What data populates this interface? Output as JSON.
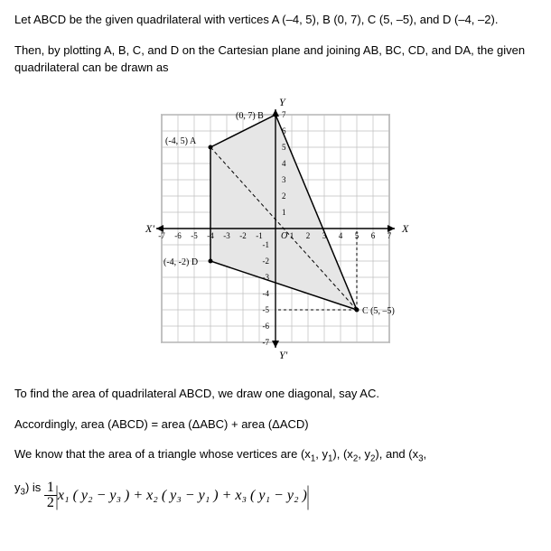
{
  "para1": "Let ABCD be the given quadrilateral with vertices A (–4, 5), B (0, 7), C (5, –5), and D (–4, –2).",
  "para2": "Then, by plotting A, B, C, and D on the Cartesian plane and joining AB, BC, CD, and DA, the given quadrilateral can be drawn as",
  "para3": "To find the area of quadrilateral ABCD, we draw one diagonal, say AC.",
  "para4": "Accordingly, area (ABCD) = area (ΔABC) + area (ΔACD)",
  "para5a": "We know that the area of a triangle whose vertices are (x",
  "para5b": ", y",
  "para5c": "), (x",
  "para5d": ", y",
  "para5e": "), and (x",
  "para5f": ",",
  "para6a": "y",
  "para6b": ") is ",
  "sub1": "1",
  "sub2": "2",
  "sub3": "3",
  "frac_num": "1",
  "frac_den": "2",
  "formula_inner": "x₁ ( y₂ − y₃ ) + x₂ ( y₃ − y₁ ) + x₃ ( y₁ − y₂ )",
  "chart": {
    "type": "cartesian-plot",
    "xlim": [
      -7,
      7
    ],
    "ylim": [
      -7,
      7
    ],
    "cell": 18,
    "origin_label": "O",
    "axis_labels": {
      "xpos": "X",
      "xneg": "X'",
      "ypos": "Y",
      "yneg": "Y'"
    },
    "grid_color": "#bfbfbf",
    "axis_color": "#000000",
    "line_color": "#000000",
    "fill_color": "#e6e6e6",
    "xticks": [
      -7,
      -6,
      -5,
      -4,
      -3,
      -2,
      -1,
      1,
      2,
      3,
      4,
      5,
      6,
      7
    ],
    "yticks": [
      -7,
      -6,
      -5,
      -4,
      -3,
      -2,
      -1,
      1,
      2,
      3,
      4,
      5,
      6,
      7
    ],
    "points": {
      "A": {
        "x": -4,
        "y": 5,
        "label": "(-4, 5) A",
        "label_dx": -50,
        "label_dy": -4
      },
      "B": {
        "x": 0,
        "y": 7,
        "label": "(0, 7) B",
        "label_dx": -44,
        "label_dy": 4
      },
      "C": {
        "x": 5,
        "y": -5,
        "label": "C (5, –5)",
        "label_dx": 6,
        "label_dy": 4
      },
      "D": {
        "x": -4,
        "y": -2,
        "label": "(-4, -2) D",
        "label_dx": -52,
        "label_dy": 4
      }
    },
    "polygon": [
      "A",
      "B",
      "C",
      "D"
    ],
    "diagonal": [
      "A",
      "C"
    ],
    "droplines": [
      {
        "from": "B",
        "to_y": 0
      },
      {
        "from": "C",
        "to_y": 0
      },
      {
        "from": "C",
        "to_x": 0
      }
    ]
  }
}
